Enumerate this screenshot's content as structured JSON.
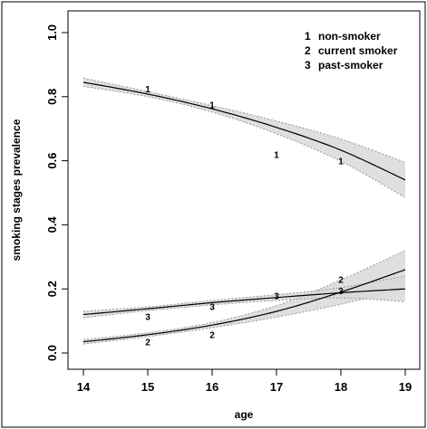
{
  "chart_data": {
    "type": "line",
    "title": "",
    "xlabel": "age",
    "ylabel": "smoking stages prevalence",
    "xlim": [
      14,
      19
    ],
    "ylim": [
      0.0,
      1.0
    ],
    "x_ticks": [
      14,
      15,
      16,
      17,
      18,
      19
    ],
    "y_ticks": [
      0.0,
      0.2,
      0.4,
      0.6,
      0.8,
      1.0
    ],
    "x_tick_labels": [
      "14",
      "15",
      "16",
      "17",
      "18",
      "19"
    ],
    "y_tick_labels": [
      "0.0",
      "0.2",
      "0.4",
      "0.6",
      "0.8",
      "1.0"
    ],
    "legend_position": "top-right",
    "grid": false,
    "series": [
      {
        "name": "non-smoker",
        "key": "1",
        "curve": {
          "x": [
            14,
            15,
            16,
            17,
            18,
            19
          ],
          "y": [
            0.845,
            0.808,
            0.762,
            0.704,
            0.633,
            0.54
          ],
          "lower": [
            0.832,
            0.8,
            0.752,
            0.684,
            0.598,
            0.485
          ],
          "upper": [
            0.858,
            0.816,
            0.772,
            0.724,
            0.668,
            0.595
          ]
        },
        "points": {
          "x": [
            15,
            16,
            17,
            18
          ],
          "y": [
            0.825,
            0.775,
            0.62,
            0.6
          ]
        }
      },
      {
        "name": "current smoker",
        "key": "2",
        "curve": {
          "x": [
            14,
            15,
            16,
            17,
            18,
            19
          ],
          "y": [
            0.035,
            0.057,
            0.087,
            0.13,
            0.19,
            0.26
          ],
          "lower": [
            0.028,
            0.051,
            0.079,
            0.112,
            0.152,
            0.2
          ],
          "upper": [
            0.042,
            0.063,
            0.095,
            0.148,
            0.228,
            0.32
          ]
        },
        "points": {
          "x": [
            15,
            16,
            18
          ],
          "y": [
            0.035,
            0.058,
            0.23
          ]
        }
      },
      {
        "name": "past-smoker",
        "key": "3",
        "curve": {
          "x": [
            14,
            15,
            16,
            17,
            18,
            19
          ],
          "y": [
            0.12,
            0.138,
            0.157,
            0.173,
            0.188,
            0.2
          ],
          "lower": [
            0.11,
            0.132,
            0.15,
            0.164,
            0.172,
            0.16
          ],
          "upper": [
            0.13,
            0.144,
            0.164,
            0.182,
            0.204,
            0.24
          ]
        },
        "points": {
          "x": [
            15,
            16,
            17,
            18
          ],
          "y": [
            0.115,
            0.145,
            0.18,
            0.195
          ]
        }
      }
    ]
  }
}
